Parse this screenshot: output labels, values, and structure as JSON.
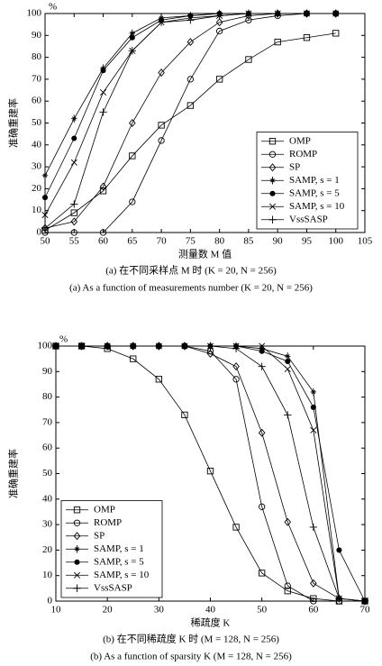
{
  "chart_data": [
    {
      "type": "line",
      "y_unit": "%",
      "xlabel": "测量数 M 值",
      "ylabel": "准确重建率",
      "captions": [
        "(a)  在不同采样点 M 时 (K = 20, N = 256)",
        "(a)  As a function of measurements number (K = 20, N = 256)"
      ],
      "x": [
        50,
        55,
        60,
        65,
        70,
        75,
        80,
        85,
        90,
        95,
        100
      ],
      "xlim": [
        50,
        105
      ],
      "xticks": [
        50,
        55,
        60,
        65,
        70,
        75,
        80,
        85,
        90,
        95,
        100,
        105
      ],
      "ylim": [
        0,
        100
      ],
      "yticks": [
        0,
        10,
        20,
        30,
        40,
        50,
        60,
        70,
        80,
        90,
        100
      ],
      "legend": "lower right",
      "series": [
        {
          "name": "OMP",
          "color": "#000000",
          "marker": "square",
          "values": [
            1,
            9,
            19,
            35,
            49,
            58,
            70,
            79,
            87,
            89,
            91
          ]
        },
        {
          "name": "ROMP",
          "color": "#000000",
          "marker": "circle",
          "values": [
            0,
            0,
            0,
            14,
            42,
            70,
            92,
            97,
            99,
            100,
            100
          ]
        },
        {
          "name": "SP",
          "color": "#000000",
          "marker": "diamond",
          "values": [
            2,
            5,
            21,
            50,
            73,
            87,
            96,
            99,
            100,
            100,
            100
          ]
        },
        {
          "name": "SAMP, s = 1",
          "color": "#000000",
          "marker": "star",
          "values": [
            26,
            52,
            75,
            91,
            98,
            99,
            100,
            100,
            100,
            100,
            100
          ]
        },
        {
          "name": "SAMP, s = 5",
          "color": "#000000",
          "marker": "dot",
          "values": [
            16,
            43,
            74,
            89,
            97,
            99,
            100,
            100,
            100,
            100,
            100
          ]
        },
        {
          "name": "SAMP, s = 10",
          "color": "#000000",
          "marker": "x",
          "values": [
            8,
            32,
            64,
            83,
            96,
            98,
            99,
            100,
            100,
            100,
            100
          ]
        },
        {
          "name": "VssSASP",
          "color": "#000000",
          "marker": "plus",
          "values": [
            2,
            13,
            55,
            83,
            96,
            97,
            99,
            100,
            100,
            100,
            100
          ]
        }
      ]
    },
    {
      "type": "line",
      "y_unit": "%",
      "xlabel": "稀疏度 K",
      "ylabel": "准确重建率",
      "captions": [
        "(b)  在不同稀疏度 K 时 (M = 128, N = 256)",
        "(b)  As a function of sparsity K (M = 128, N = 256)"
      ],
      "x": [
        10,
        15,
        20,
        25,
        30,
        35,
        40,
        45,
        50,
        55,
        60,
        65,
        70
      ],
      "xlim": [
        10,
        70
      ],
      "xticks": [
        10,
        20,
        30,
        40,
        50,
        60,
        70
      ],
      "ylim": [
        0,
        100
      ],
      "yticks": [
        0,
        10,
        20,
        30,
        40,
        50,
        60,
        70,
        80,
        90,
        100
      ],
      "legend": "lower left",
      "series": [
        {
          "name": "OMP",
          "color": "#000000",
          "marker": "square",
          "values": [
            100,
            100,
            99,
            95,
            87,
            73,
            51,
            29,
            11,
            4,
            1,
            0,
            0
          ]
        },
        {
          "name": "ROMP",
          "color": "#000000",
          "marker": "circle",
          "values": [
            100,
            100,
            100,
            100,
            100,
            100,
            98,
            87,
            37,
            6,
            0,
            0,
            0
          ]
        },
        {
          "name": "SP",
          "color": "#000000",
          "marker": "diamond",
          "values": [
            100,
            100,
            100,
            100,
            100,
            100,
            97,
            92,
            66,
            31,
            7,
            1,
            0
          ]
        },
        {
          "name": "SAMP, s = 1",
          "color": "#000000",
          "marker": "star",
          "values": [
            100,
            100,
            100,
            100,
            100,
            100,
            100,
            100,
            99,
            96,
            82,
            1,
            0
          ]
        },
        {
          "name": "SAMP, s = 5",
          "color": "#000000",
          "marker": "dot",
          "values": [
            100,
            100,
            100,
            100,
            100,
            100,
            100,
            100,
            98,
            94,
            76,
            20,
            0
          ]
        },
        {
          "name": "SAMP, s = 10",
          "color": "#000000",
          "marker": "x",
          "values": [
            100,
            100,
            100,
            100,
            100,
            100,
            100,
            100,
            100,
            91,
            67,
            1,
            0
          ]
        },
        {
          "name": "VssSASP",
          "color": "#000000",
          "marker": "plus",
          "values": [
            100,
            100,
            100,
            100,
            100,
            100,
            100,
            99,
            92,
            73,
            29,
            1,
            0
          ]
        }
      ]
    }
  ]
}
